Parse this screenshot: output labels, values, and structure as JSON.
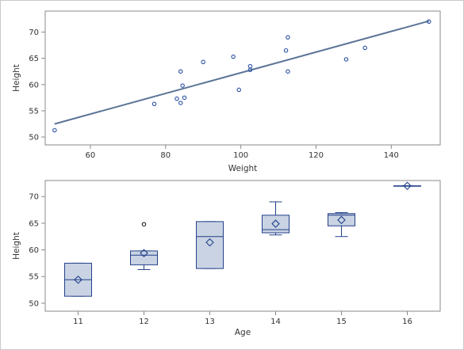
{
  "chart_data": [
    {
      "type": "scatter",
      "xlabel": "Weight",
      "ylabel": "Height",
      "xlim": [
        48,
        153
      ],
      "ylim": [
        48.5,
        74
      ],
      "x_ticks": [
        60,
        80,
        100,
        120,
        140
      ],
      "y_ticks": [
        50,
        55,
        60,
        65,
        70
      ],
      "points": [
        {
          "x": 50.5,
          "y": 51.3
        },
        {
          "x": 77,
          "y": 56.3
        },
        {
          "x": 83,
          "y": 57.3
        },
        {
          "x": 84,
          "y": 56.5
        },
        {
          "x": 84,
          "y": 62.5
        },
        {
          "x": 84.5,
          "y": 59.8
        },
        {
          "x": 85,
          "y": 57.5
        },
        {
          "x": 90,
          "y": 64.3
        },
        {
          "x": 98,
          "y": 65.3
        },
        {
          "x": 99.5,
          "y": 59.0
        },
        {
          "x": 102.5,
          "y": 63.5
        },
        {
          "x": 102.5,
          "y": 62.8
        },
        {
          "x": 112,
          "y": 66.5
        },
        {
          "x": 112.5,
          "y": 69.0
        },
        {
          "x": 112.5,
          "y": 62.5
        },
        {
          "x": 128,
          "y": 64.8
        },
        {
          "x": 133,
          "y": 67.0
        },
        {
          "x": 150,
          "y": 72.0
        }
      ],
      "fit_line": [
        {
          "x": 50.5,
          "y": 52.5
        },
        {
          "x": 150,
          "y": 72.1
        }
      ],
      "grid": false,
      "colors": {
        "marker": "#2a4fa3",
        "line": "#5b7597"
      }
    },
    {
      "type": "box",
      "xlabel": "Age",
      "ylabel": "Height",
      "ylim": [
        48.5,
        73
      ],
      "y_ticks": [
        50,
        55,
        60,
        65,
        70
      ],
      "categories": [
        "11",
        "12",
        "13",
        "14",
        "15",
        "16"
      ],
      "boxes": [
        {
          "category": "11",
          "whisker_low": 51.3,
          "q1": 51.3,
          "median": 54.4,
          "q3": 57.5,
          "whisker_high": 57.5,
          "mean": 54.4,
          "outliers": []
        },
        {
          "category": "12",
          "whisker_low": 56.3,
          "q1": 57.2,
          "median": 59.0,
          "q3": 59.8,
          "whisker_high": 59.8,
          "mean": 59.4,
          "outliers": [
            64.8
          ]
        },
        {
          "category": "13",
          "whisker_low": 56.5,
          "q1": 56.5,
          "median": 62.5,
          "q3": 65.3,
          "whisker_high": 65.3,
          "mean": 61.4,
          "outliers": []
        },
        {
          "category": "14",
          "whisker_low": 62.8,
          "q1": 63.2,
          "median": 63.8,
          "q3": 66.5,
          "whisker_high": 69.0,
          "mean": 64.9,
          "outliers": []
        },
        {
          "category": "15",
          "whisker_low": 62.5,
          "q1": 64.5,
          "median": 66.5,
          "q3": 66.8,
          "whisker_high": 67.0,
          "mean": 65.6,
          "outliers": []
        },
        {
          "category": "16",
          "whisker_low": 72.0,
          "q1": 72.0,
          "median": 72.0,
          "q3": 72.0,
          "whisker_high": 72.0,
          "mean": 72.0,
          "outliers": []
        }
      ],
      "grid": false,
      "colors": {
        "box_fill": "#c9d3e3",
        "box_line": "#23408a",
        "mean_marker": "#23408a"
      }
    }
  ]
}
